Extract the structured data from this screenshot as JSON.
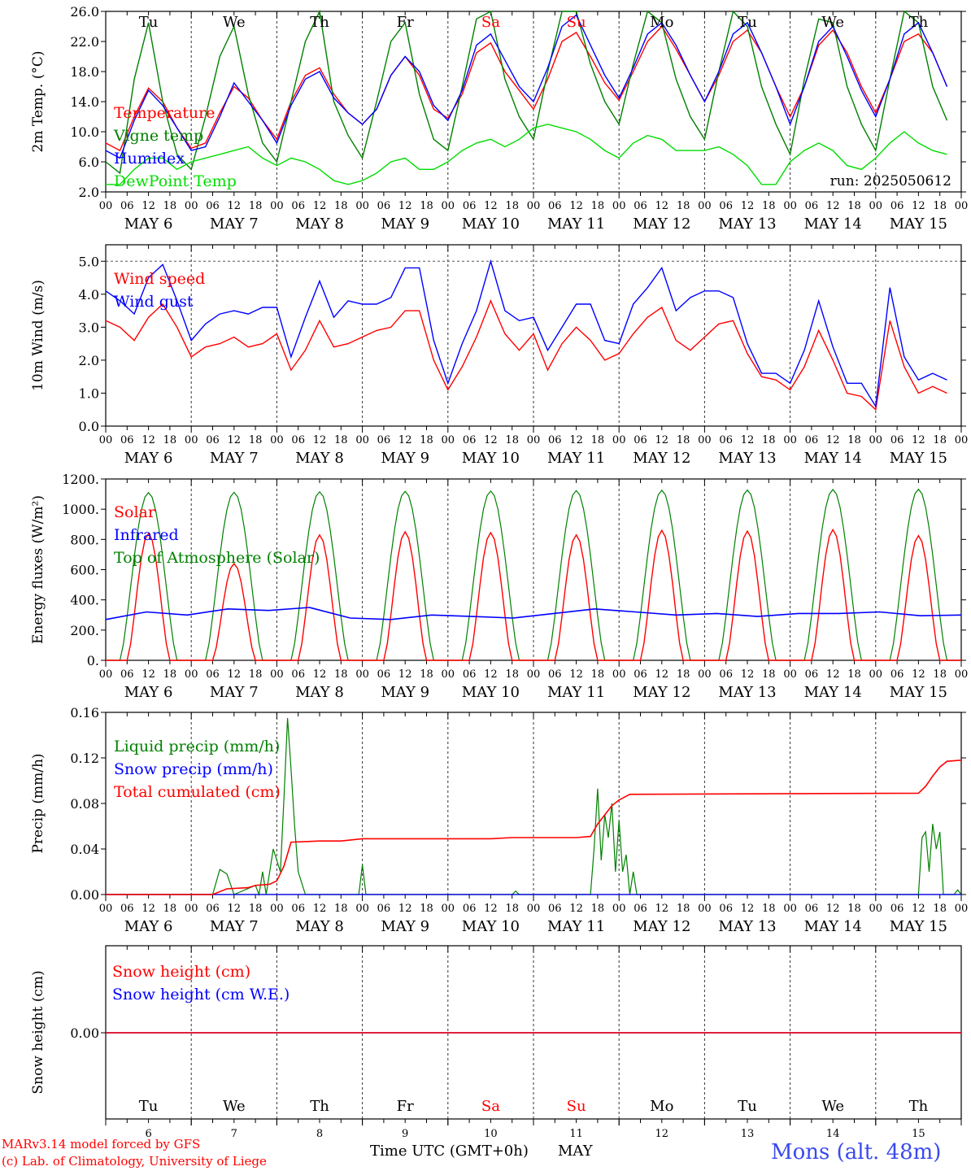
{
  "days": {
    "names": [
      "Tu",
      "We",
      "Th",
      "Fr",
      "Sa",
      "Su",
      "Mo",
      "Tu",
      "We",
      "Th"
    ],
    "weekend_flags": [
      false,
      false,
      false,
      false,
      true,
      true,
      false,
      false,
      false,
      false
    ],
    "dates": [
      "MAY  6",
      "MAY  7",
      "MAY  8",
      "MAY  9",
      "MAY 10",
      "MAY 11",
      "MAY 12",
      "MAY 13",
      "MAY 14",
      "MAY 15"
    ],
    "day_numbers": [
      "6",
      "7",
      "8",
      "9",
      "10",
      "11",
      "12",
      "13",
      "14",
      "15"
    ],
    "hour_ticks": [
      "00",
      "06",
      "12",
      "18"
    ],
    "final_tick": "00"
  },
  "colors": {
    "red": "#ff0000",
    "green": "#008000",
    "blue": "#0000ff",
    "lime": "#00dd00",
    "weekend": "#ff0000"
  },
  "footer": {
    "model": "MARv3.14 model forced by GFS",
    "credit": "(c) Lab. of Climatology, University of Liege",
    "time_axis": "Time UTC (GMT+0h)",
    "month": "MAY",
    "station": "Mons (alt. 48m)"
  },
  "chart_data": [
    {
      "type": "line",
      "ylabel": "2m Temp. (°C)",
      "ylim": [
        2,
        26
      ],
      "yticks": [
        "2.0",
        "6.0",
        "10.0",
        "14.0",
        "18.0",
        "22.0",
        "26.0"
      ],
      "x": "hours since MAY 6 00 UTC, 6-hourly",
      "annotation": "run: 2025050612",
      "series": [
        {
          "name": "Temperature",
          "color": "red",
          "values": [
            8.5,
            7.5,
            12.0,
            15.8,
            14.0,
            10.5,
            7.8,
            8.5,
            12.5,
            16.0,
            14.5,
            11.5,
            9.0,
            14.0,
            17.5,
            18.5,
            15.0,
            12.5,
            11.0,
            13.0,
            17.5,
            20.0,
            17.5,
            13.0,
            11.8,
            15.0,
            20.5,
            21.8,
            18.0,
            15.5,
            13.0,
            17.0,
            22.0,
            23.2,
            20.0,
            16.5,
            14.2,
            18.0,
            22.0,
            24.0,
            21.0,
            17.5,
            14.0,
            17.5,
            22.0,
            23.5,
            20.5,
            16.0,
            12.0,
            16.0,
            21.5,
            23.5,
            20.5,
            16.0,
            12.5,
            17.0,
            22.0,
            23.0,
            20.5,
            16.0
          ]
        },
        {
          "name": "Vigne temp",
          "color": "green",
          "values": [
            6.0,
            4.5,
            17.0,
            24.5,
            14.0,
            7.0,
            5.0,
            12.0,
            20.0,
            24.0,
            15.0,
            8.5,
            6.0,
            14.0,
            22.0,
            26.0,
            14.0,
            9.5,
            6.5,
            14.0,
            22.0,
            24.5,
            15.0,
            9.0,
            7.5,
            16.0,
            25.0,
            26.0,
            17.0,
            12.0,
            9.0,
            18.0,
            26.0,
            26.0,
            19.0,
            14.0,
            11.0,
            19.0,
            26.0,
            24.5,
            17.0,
            12.0,
            9.0,
            18.0,
            26.0,
            24.0,
            16.0,
            11.0,
            7.0,
            17.0,
            25.0,
            24.5,
            16.0,
            11.0,
            7.5,
            17.0,
            26.0,
            24.5,
            16.0,
            11.5
          ]
        },
        {
          "name": "Humidex",
          "color": "blue",
          "values": [
            7.5,
            6.5,
            11.5,
            15.5,
            13.5,
            10.5,
            7.5,
            8.0,
            12.0,
            16.5,
            14.0,
            11.5,
            8.5,
            13.5,
            17.0,
            18.0,
            14.5,
            12.5,
            11.0,
            13.0,
            17.5,
            20.0,
            18.0,
            13.5,
            11.5,
            15.5,
            21.5,
            23.0,
            19.5,
            16.0,
            14.0,
            18.5,
            24.0,
            25.5,
            21.5,
            17.5,
            14.5,
            18.5,
            23.0,
            24.5,
            21.5,
            17.5,
            14.0,
            18.0,
            23.0,
            24.5,
            20.5,
            16.0,
            11.0,
            16.0,
            22.0,
            24.0,
            20.0,
            15.5,
            12.0,
            17.0,
            23.0,
            24.5,
            20.5,
            16.0
          ]
        },
        {
          "name": "DewPoint Temp",
          "color": "lime",
          "values": [
            3.0,
            3.0,
            5.0,
            6.5,
            6.5,
            5.0,
            6.0,
            6.5,
            7.0,
            7.5,
            8.0,
            6.5,
            5.5,
            6.5,
            6.0,
            5.0,
            3.5,
            3.0,
            3.5,
            4.5,
            6.0,
            6.5,
            5.0,
            5.0,
            6.0,
            7.5,
            8.5,
            9.0,
            8.0,
            9.0,
            10.5,
            11.0,
            10.5,
            10.0,
            9.0,
            7.5,
            6.5,
            8.5,
            9.5,
            9.0,
            7.5,
            7.5,
            7.5,
            8.0,
            7.0,
            5.5,
            3.0,
            3.0,
            6.0,
            7.5,
            8.5,
            7.5,
            5.5,
            5.0,
            6.5,
            8.5,
            10.0,
            8.5,
            7.5,
            7.0
          ]
        }
      ]
    },
    {
      "type": "line",
      "ylabel": "10m Wind (m/s)",
      "ylim": [
        0,
        5.5
      ],
      "yticks": [
        "0.0",
        "1.0",
        "2.0",
        "3.0",
        "4.0",
        "5.0"
      ],
      "x": "hours since MAY 6 00 UTC, 6-hourly",
      "series": [
        {
          "name": "Wind speed",
          "color": "red",
          "values": [
            3.2,
            3.0,
            2.6,
            3.3,
            3.7,
            3.0,
            2.1,
            2.4,
            2.5,
            2.7,
            2.4,
            2.5,
            2.8,
            1.7,
            2.3,
            3.2,
            2.4,
            2.5,
            2.7,
            2.9,
            3.0,
            3.5,
            3.5,
            2.0,
            1.1,
            1.8,
            2.7,
            3.8,
            2.8,
            2.3,
            2.8,
            1.7,
            2.5,
            3.0,
            2.6,
            2.0,
            2.2,
            2.8,
            3.3,
            3.6,
            2.6,
            2.3,
            2.7,
            3.1,
            3.2,
            2.2,
            1.5,
            1.4,
            1.1,
            1.8,
            2.9,
            2.0,
            1.0,
            0.9,
            0.5,
            3.2,
            1.8,
            1.0,
            1.2,
            1.0
          ]
        },
        {
          "name": "Wind gust",
          "color": "blue",
          "values": [
            4.1,
            3.8,
            3.4,
            4.5,
            4.9,
            3.8,
            2.6,
            3.1,
            3.4,
            3.5,
            3.4,
            3.6,
            3.6,
            2.1,
            3.3,
            4.4,
            3.3,
            3.8,
            3.7,
            3.7,
            3.9,
            4.8,
            4.8,
            2.6,
            1.3,
            2.5,
            3.5,
            5.0,
            3.5,
            3.2,
            3.3,
            2.3,
            3.0,
            3.7,
            3.7,
            2.6,
            2.5,
            3.7,
            4.2,
            4.8,
            3.5,
            3.9,
            4.1,
            4.1,
            3.9,
            2.5,
            1.6,
            1.6,
            1.3,
            2.3,
            3.8,
            2.4,
            1.3,
            1.3,
            0.6,
            4.2,
            2.1,
            1.4,
            1.6,
            1.4
          ]
        }
      ]
    },
    {
      "type": "line",
      "ylabel": "Energy fluxes (W/m²)",
      "ylim": [
        0,
        1200
      ],
      "yticks": [
        "0.",
        "200.",
        "400.",
        "600.",
        "800.",
        "1000.",
        "1200."
      ],
      "x": "hours since MAY 6 00 UTC, hourly daily cycles",
      "series": [
        {
          "name": "Solar",
          "color": "red",
          "daily_peak": [
            840,
            640,
            830,
            850,
            845,
            830,
            860,
            855,
            865,
            825
          ]
        },
        {
          "name": "Infrared",
          "color": "blue",
          "values": [
            270,
            320,
            300,
            340,
            330,
            350,
            280,
            270,
            300,
            290,
            280,
            310,
            340,
            320,
            300,
            310,
            290,
            310,
            310,
            320,
            295,
            300
          ]
        },
        {
          "name": "Top of Atmosphere (Solar)",
          "color": "green",
          "daily_peak": [
            1110,
            1112,
            1115,
            1118,
            1120,
            1123,
            1125,
            1127,
            1130,
            1132
          ]
        }
      ]
    },
    {
      "type": "line",
      "ylabel": "Precip (mm/h)",
      "ylim": [
        0,
        0.16
      ],
      "yticks": [
        "0.00",
        "0.04",
        "0.08",
        "0.12",
        "0.16"
      ],
      "x": "hours since MAY 6 00 UTC",
      "series": [
        {
          "name": "Liquid precip (mm/h)",
          "color": "green",
          "points": [
            [
              0,
              0
            ],
            [
              30,
              0
            ],
            [
              32,
              0.022
            ],
            [
              34,
              0.018
            ],
            [
              36,
              0
            ],
            [
              42,
              0.008
            ],
            [
              43,
              0
            ],
            [
              44,
              0.02
            ],
            [
              45,
              0
            ],
            [
              47,
              0.04
            ],
            [
              49,
              0.02
            ],
            [
              50,
              0.085
            ],
            [
              51,
              0.155
            ],
            [
              52,
              0.11
            ],
            [
              53,
              0.06
            ],
            [
              54,
              0.02
            ],
            [
              56,
              0
            ],
            [
              71,
              0
            ],
            [
              72,
              0.026
            ],
            [
              73,
              0
            ],
            [
              114,
              0
            ],
            [
              115,
              0.003
            ],
            [
              116,
              0
            ],
            [
              136,
              0
            ],
            [
              137,
              0.04
            ],
            [
              138,
              0.093
            ],
            [
              139,
              0.03
            ],
            [
              140,
              0.07
            ],
            [
              141,
              0.05
            ],
            [
              142,
              0.08
            ],
            [
              143,
              0.02
            ],
            [
              144,
              0.065
            ],
            [
              145,
              0.02
            ],
            [
              146,
              0.035
            ],
            [
              147,
              0
            ],
            [
              148,
              0.02
            ],
            [
              149,
              0
            ],
            [
              228,
              0
            ],
            [
              229,
              0.05
            ],
            [
              230,
              0.055
            ],
            [
              231,
              0.02
            ],
            [
              232,
              0.062
            ],
            [
              233,
              0.04
            ],
            [
              234,
              0.055
            ],
            [
              235,
              0
            ],
            [
              238,
              0
            ],
            [
              239,
              0.004
            ],
            [
              240,
              0
            ]
          ]
        },
        {
          "name": "Snow precip (mm/h)",
          "color": "blue",
          "points": [
            [
              0,
              0
            ],
            [
              240,
              0
            ]
          ]
        },
        {
          "name": "Total cumulated (cm)",
          "color": "red",
          "points": [
            [
              0,
              0
            ],
            [
              30,
              0
            ],
            [
              34,
              0.005
            ],
            [
              40,
              0.006
            ],
            [
              42,
              0.008
            ],
            [
              46,
              0.009
            ],
            [
              48,
              0.012
            ],
            [
              50,
              0.025
            ],
            [
              52,
              0.046
            ],
            [
              60,
              0.047
            ],
            [
              66,
              0.047
            ],
            [
              72,
              0.049
            ],
            [
              108,
              0.049
            ],
            [
              114,
              0.05
            ],
            [
              132,
              0.05
            ],
            [
              136,
              0.051
            ],
            [
              138,
              0.062
            ],
            [
              140,
              0.07
            ],
            [
              142,
              0.078
            ],
            [
              144,
              0.083
            ],
            [
              147,
              0.088
            ],
            [
              228,
              0.089
            ],
            [
              230,
              0.095
            ],
            [
              232,
              0.104
            ],
            [
              234,
              0.112
            ],
            [
              236,
              0.117
            ],
            [
              240,
              0.118
            ]
          ]
        }
      ]
    },
    {
      "type": "line",
      "ylabel": "Snow height (cm)",
      "yticks": [
        "0.00"
      ],
      "x": "hours since MAY 6 00 UTC",
      "series": [
        {
          "name": "Snow height (cm)",
          "color": "red",
          "values": [
            0,
            0
          ]
        },
        {
          "name": "Snow height (cm W.E.)",
          "color": "blue",
          "values": [
            0,
            0
          ]
        }
      ]
    }
  ]
}
